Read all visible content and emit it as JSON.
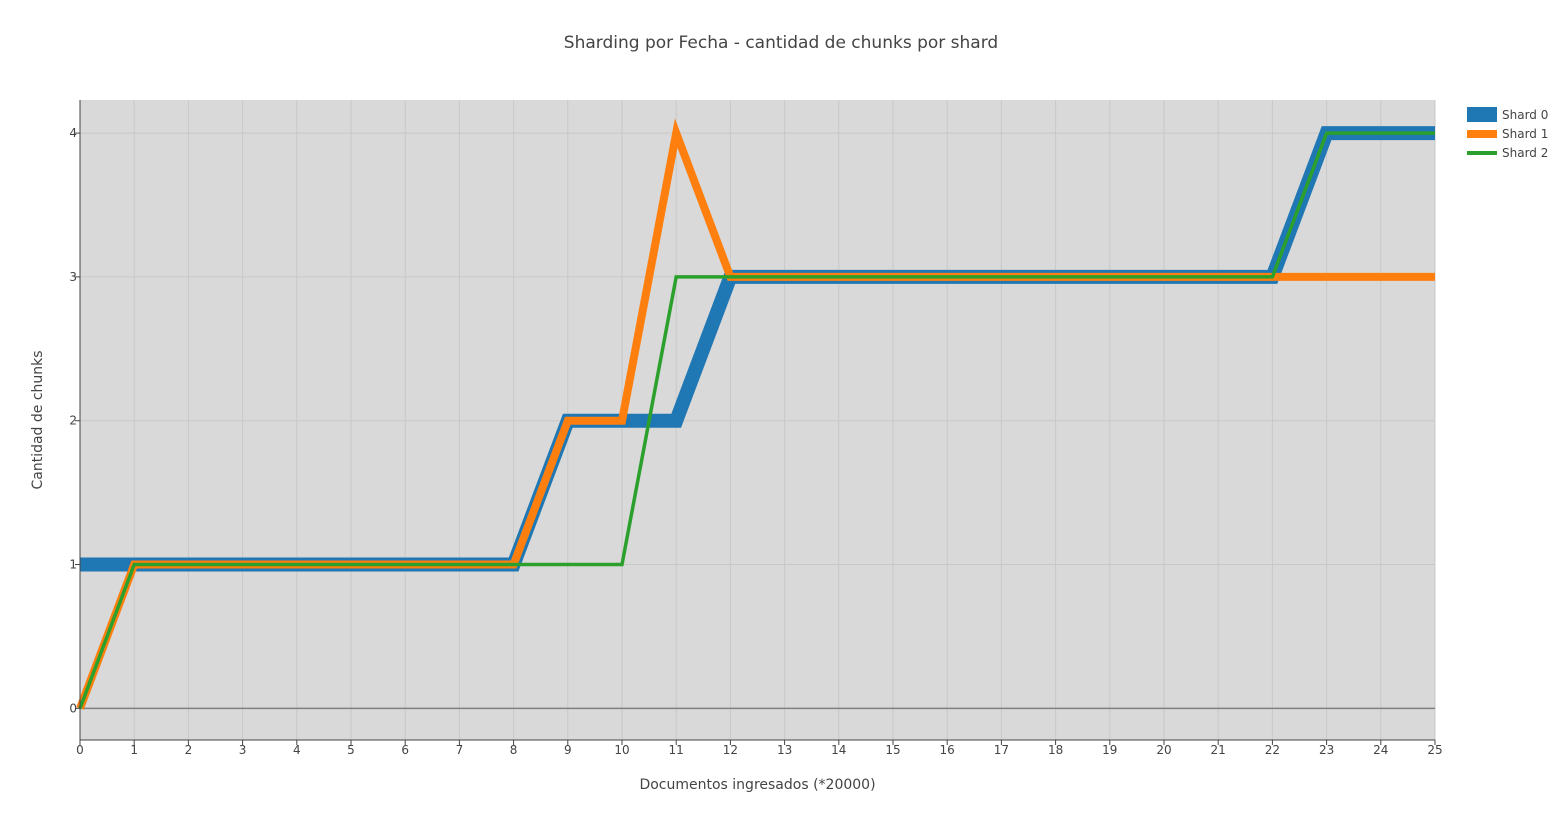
{
  "chart_data": {
    "type": "line",
    "title": "Sharding por Fecha -  cantidad de chunks por shard",
    "xlabel": "Documentos ingresados (*20000)",
    "ylabel": "Cantidad de chunks",
    "x": [
      0,
      1,
      2,
      3,
      4,
      5,
      6,
      7,
      8,
      9,
      10,
      11,
      12,
      13,
      14,
      15,
      16,
      17,
      18,
      19,
      20,
      21,
      22,
      23,
      24,
      25
    ],
    "xlim": [
      0,
      25
    ],
    "ylim": [
      -0.22,
      4.23
    ],
    "x_ticks": [
      "0",
      "1",
      "2",
      "3",
      "4",
      "5",
      "6",
      "7",
      "8",
      "9",
      "10",
      "11",
      "12",
      "13",
      "14",
      "15",
      "16",
      "17",
      "18",
      "19",
      "20",
      "21",
      "22",
      "23",
      "24",
      "25"
    ],
    "y_ticks": [
      "0",
      "1",
      "2",
      "3",
      "4"
    ],
    "grid": true,
    "legend_position": "top-right",
    "background": "#d9d9d9",
    "series": [
      {
        "name": "Shard 0",
        "color": "#1f77b4",
        "values": [
          1,
          1,
          1,
          1,
          1,
          1,
          1,
          1,
          1,
          2,
          2,
          2,
          3,
          3,
          3,
          3,
          3,
          3,
          3,
          3,
          3,
          3,
          3,
          4,
          4,
          4
        ]
      },
      {
        "name": "Shard 1",
        "color": "#ff7f0e",
        "values": [
          0,
          1,
          1,
          1,
          1,
          1,
          1,
          1,
          1,
          2,
          2,
          4,
          3,
          3,
          3,
          3,
          3,
          3,
          3,
          3,
          3,
          3,
          3,
          3,
          3,
          3
        ]
      },
      {
        "name": "Shard 2",
        "color": "#2ca02c",
        "values": [
          0,
          1,
          1,
          1,
          1,
          1,
          1,
          1,
          1,
          1,
          1,
          3,
          3,
          3,
          3,
          3,
          3,
          3,
          3,
          3,
          3,
          3,
          3,
          4,
          4,
          4
        ]
      }
    ]
  }
}
